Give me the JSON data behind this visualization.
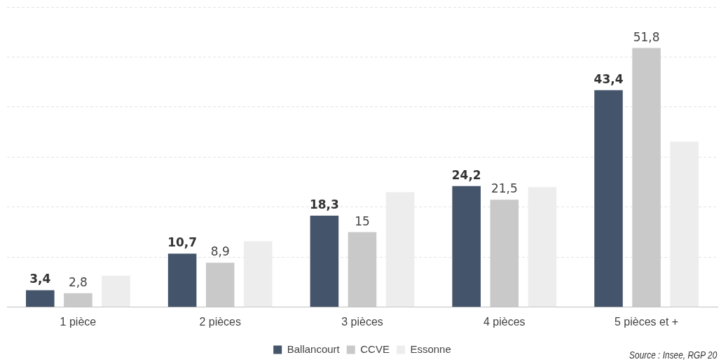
{
  "chart_data": {
    "type": "bar",
    "categories": [
      "1 pièce",
      "2 pièces",
      "3 pièces",
      "4 pièces",
      "5 pièces et +"
    ],
    "series": [
      {
        "name": "Ballancourt",
        "color": "#44546a",
        "values": [
          3.4,
          10.7,
          18.3,
          24.2,
          43.4
        ],
        "value_labels": [
          "3,4",
          "10,7",
          "18,3",
          "24,2",
          "43,4"
        ]
      },
      {
        "name": "CCVE",
        "color": "#c9c9c9",
        "values": [
          2.8,
          8.9,
          15,
          21.5,
          51.8
        ],
        "value_labels": [
          "2,8",
          "8,9",
          "15",
          "21,5",
          "51,8"
        ]
      },
      {
        "name": "Essonne",
        "color": "#ededed",
        "values": [
          6.3,
          13.2,
          23.0,
          24.0,
          33.1
        ]
      }
    ],
    "ylim": [
      0,
      60
    ],
    "yticks": [
      {
        "value": 0,
        "label": null
      },
      {
        "value": 10,
        "label": null
      },
      {
        "value": 20,
        "label": null
      },
      {
        "value": 30,
        "label": null
      },
      {
        "value": 40,
        "label": null
      },
      {
        "value": 50,
        "label": null
      },
      {
        "value": 60,
        "label": null
      }
    ],
    "tick_labels": "x",
    "grid": "y",
    "legend": "bottom",
    "annotations": [
      "Source : Insee, RGP 20"
    ]
  }
}
